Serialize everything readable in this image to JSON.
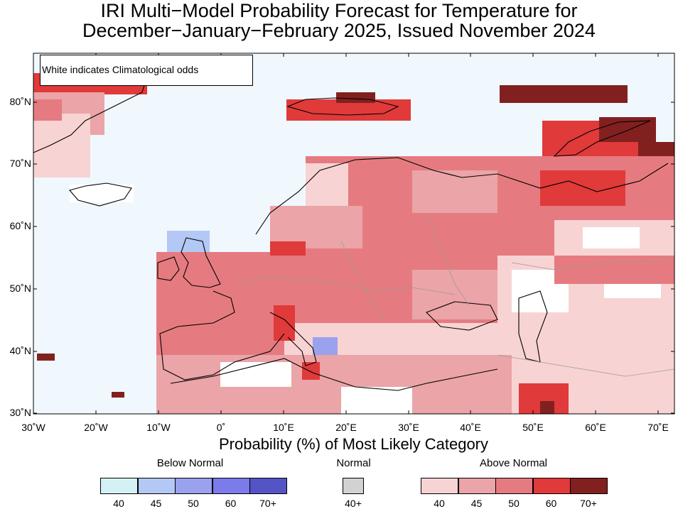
{
  "title": {
    "line1": "IRI Multi−Model Probability Forecast for Temperature for",
    "line2": "December−January−February 2025, Issued November 2024"
  },
  "note": "White indicates Climatological odds",
  "axes": {
    "y_labels": [
      "80˚N",
      "70˚N",
      "60˚N",
      "50˚N",
      "40˚N",
      "30˚N"
    ],
    "x_labels": [
      "30˚W",
      "20˚W",
      "10˚W",
      "0˚",
      "10˚E",
      "20˚E",
      "30˚E",
      "40˚E",
      "50˚E",
      "60˚E",
      "70˚E"
    ]
  },
  "legend": {
    "caption": "Probability (%) of Most Likely Category",
    "below": {
      "title": "Below Normal",
      "labels": [
        "40",
        "45",
        "50",
        "60",
        "70+"
      ],
      "colors": [
        "#d4f2f5",
        "#b4c8f5",
        "#9aa2ee",
        "#7b7be9",
        "#5454c6"
      ]
    },
    "normal": {
      "title": "Normal",
      "labels": [
        "40+"
      ],
      "colors": [
        "#d2d2d2"
      ]
    },
    "above": {
      "title": "Above Normal",
      "labels": [
        "40",
        "45",
        "50",
        "60",
        "70+"
      ],
      "colors": [
        "#f8d3d3",
        "#eba4a7",
        "#e57b80",
        "#e03a3a",
        "#822020"
      ]
    }
  },
  "map_colors": {
    "ocean": "#f0f8fe",
    "coast": "#000000",
    "border": "#9a9a9a"
  }
}
